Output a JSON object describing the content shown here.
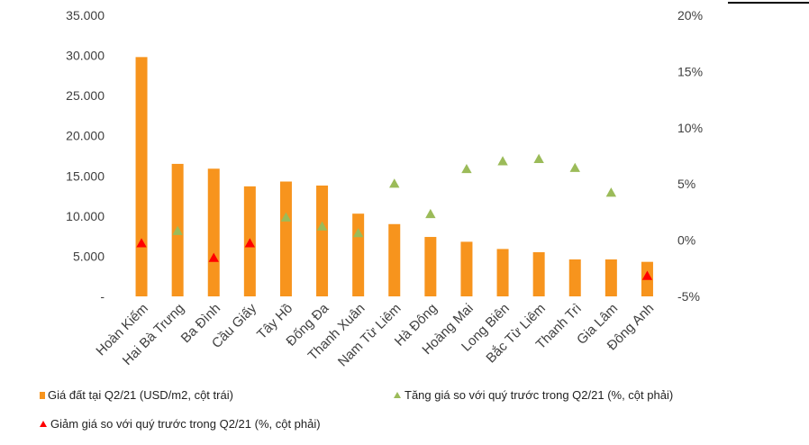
{
  "chart_data": {
    "type": "bar",
    "categories": [
      "Hoàn Kiếm",
      "Hai Bà Trưng",
      "Ba Đình",
      "Cầu Giấy",
      "Tây Hồ",
      "Đống Đa",
      "Thanh Xuân",
      "Nam Từ Liêm",
      "Hà Đông",
      "Hoàng Mai",
      "Long Biên",
      "Bắc Từ Liêm",
      "Thanh Trì",
      "Gia Lâm",
      "Đông Anh"
    ],
    "left_axis": {
      "ylim": [
        0,
        35000
      ],
      "ticks": [
        "-",
        "5.000",
        "10.000",
        "15.000",
        "20.000",
        "25.000",
        "30.000",
        "35.000"
      ]
    },
    "right_axis": {
      "ylim": [
        -5,
        20
      ],
      "ticks": [
        "-5%",
        "0%",
        "5%",
        "10%",
        "15%",
        "20%"
      ]
    },
    "series": [
      {
        "name": "Giá đất tại Q2/21 (USD/m2, cột trái)",
        "kind": "bar",
        "axis": "left",
        "values": [
          29800,
          16500,
          15900,
          13700,
          14300,
          13800,
          10300,
          9000,
          7400,
          6800,
          5900,
          5500,
          4600,
          4600,
          4300
        ]
      },
      {
        "name": "Tăng giá so với quý trước trong Q2/21 (%, cột phải)",
        "kind": "up-marker",
        "axis": "right",
        "values": [
          null,
          0.8,
          null,
          null,
          2.0,
          1.2,
          0.6,
          5.0,
          2.3,
          6.3,
          7.0,
          7.2,
          6.4,
          4.2,
          null
        ]
      },
      {
        "name": "Giảm giá so với quý trước trong Q2/21 (%, cột phải)",
        "kind": "down-marker",
        "axis": "right",
        "values": [
          -0.3,
          null,
          -1.6,
          -0.3,
          null,
          null,
          null,
          null,
          null,
          null,
          null,
          null,
          null,
          null,
          -3.2
        ]
      }
    ],
    "grid": false,
    "legend_placement": "bottom"
  },
  "colors": {
    "bar": "#F7941D",
    "up": "#9BBB59",
    "down": "#FF0000",
    "text": "#404040"
  }
}
